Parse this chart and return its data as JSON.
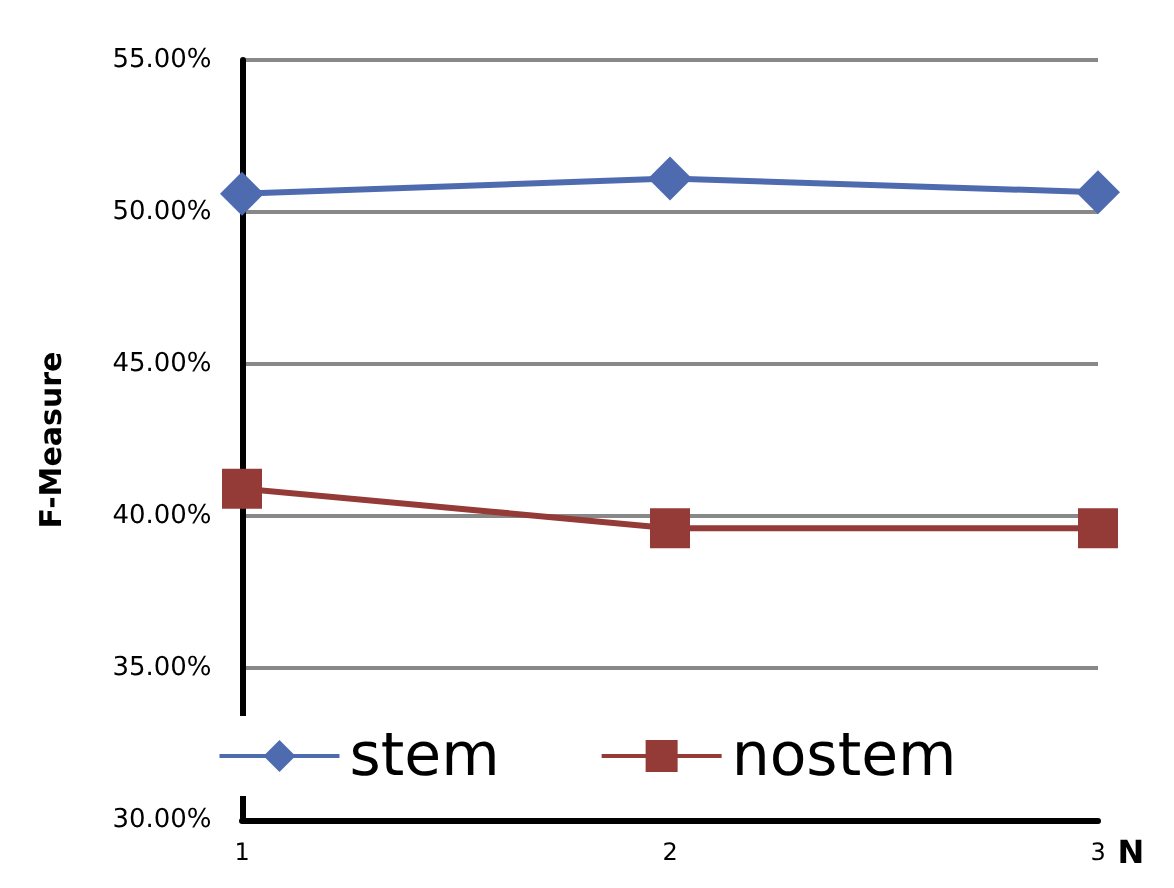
{
  "chart_data": {
    "type": "line",
    "xlabel": "N",
    "ylabel": "F-Measure",
    "x": [
      1,
      2,
      3
    ],
    "xlim": [
      1,
      3
    ],
    "xticks": [
      1,
      2,
      3
    ],
    "ylim": [
      30,
      55
    ],
    "yticks": [
      {
        "value": 30,
        "label": "30.00%"
      },
      {
        "value": 35,
        "label": "35.00%"
      },
      {
        "value": 40,
        "label": "40.00%"
      },
      {
        "value": 45,
        "label": "45.00%"
      },
      {
        "value": 50,
        "label": "50.00%"
      },
      {
        "value": 55,
        "label": "55.00%"
      }
    ],
    "series": [
      {
        "name": "stem",
        "color": "#4f6bb0",
        "values": [
          50.6,
          51.1,
          50.65
        ],
        "marker": "diamond"
      },
      {
        "name": "nostem",
        "color": "#943a37",
        "values": [
          40.9,
          39.6,
          39.6
        ],
        "marker": "square"
      }
    ],
    "grid": "y",
    "legend": "bottom",
    "line_style": "solid"
  }
}
